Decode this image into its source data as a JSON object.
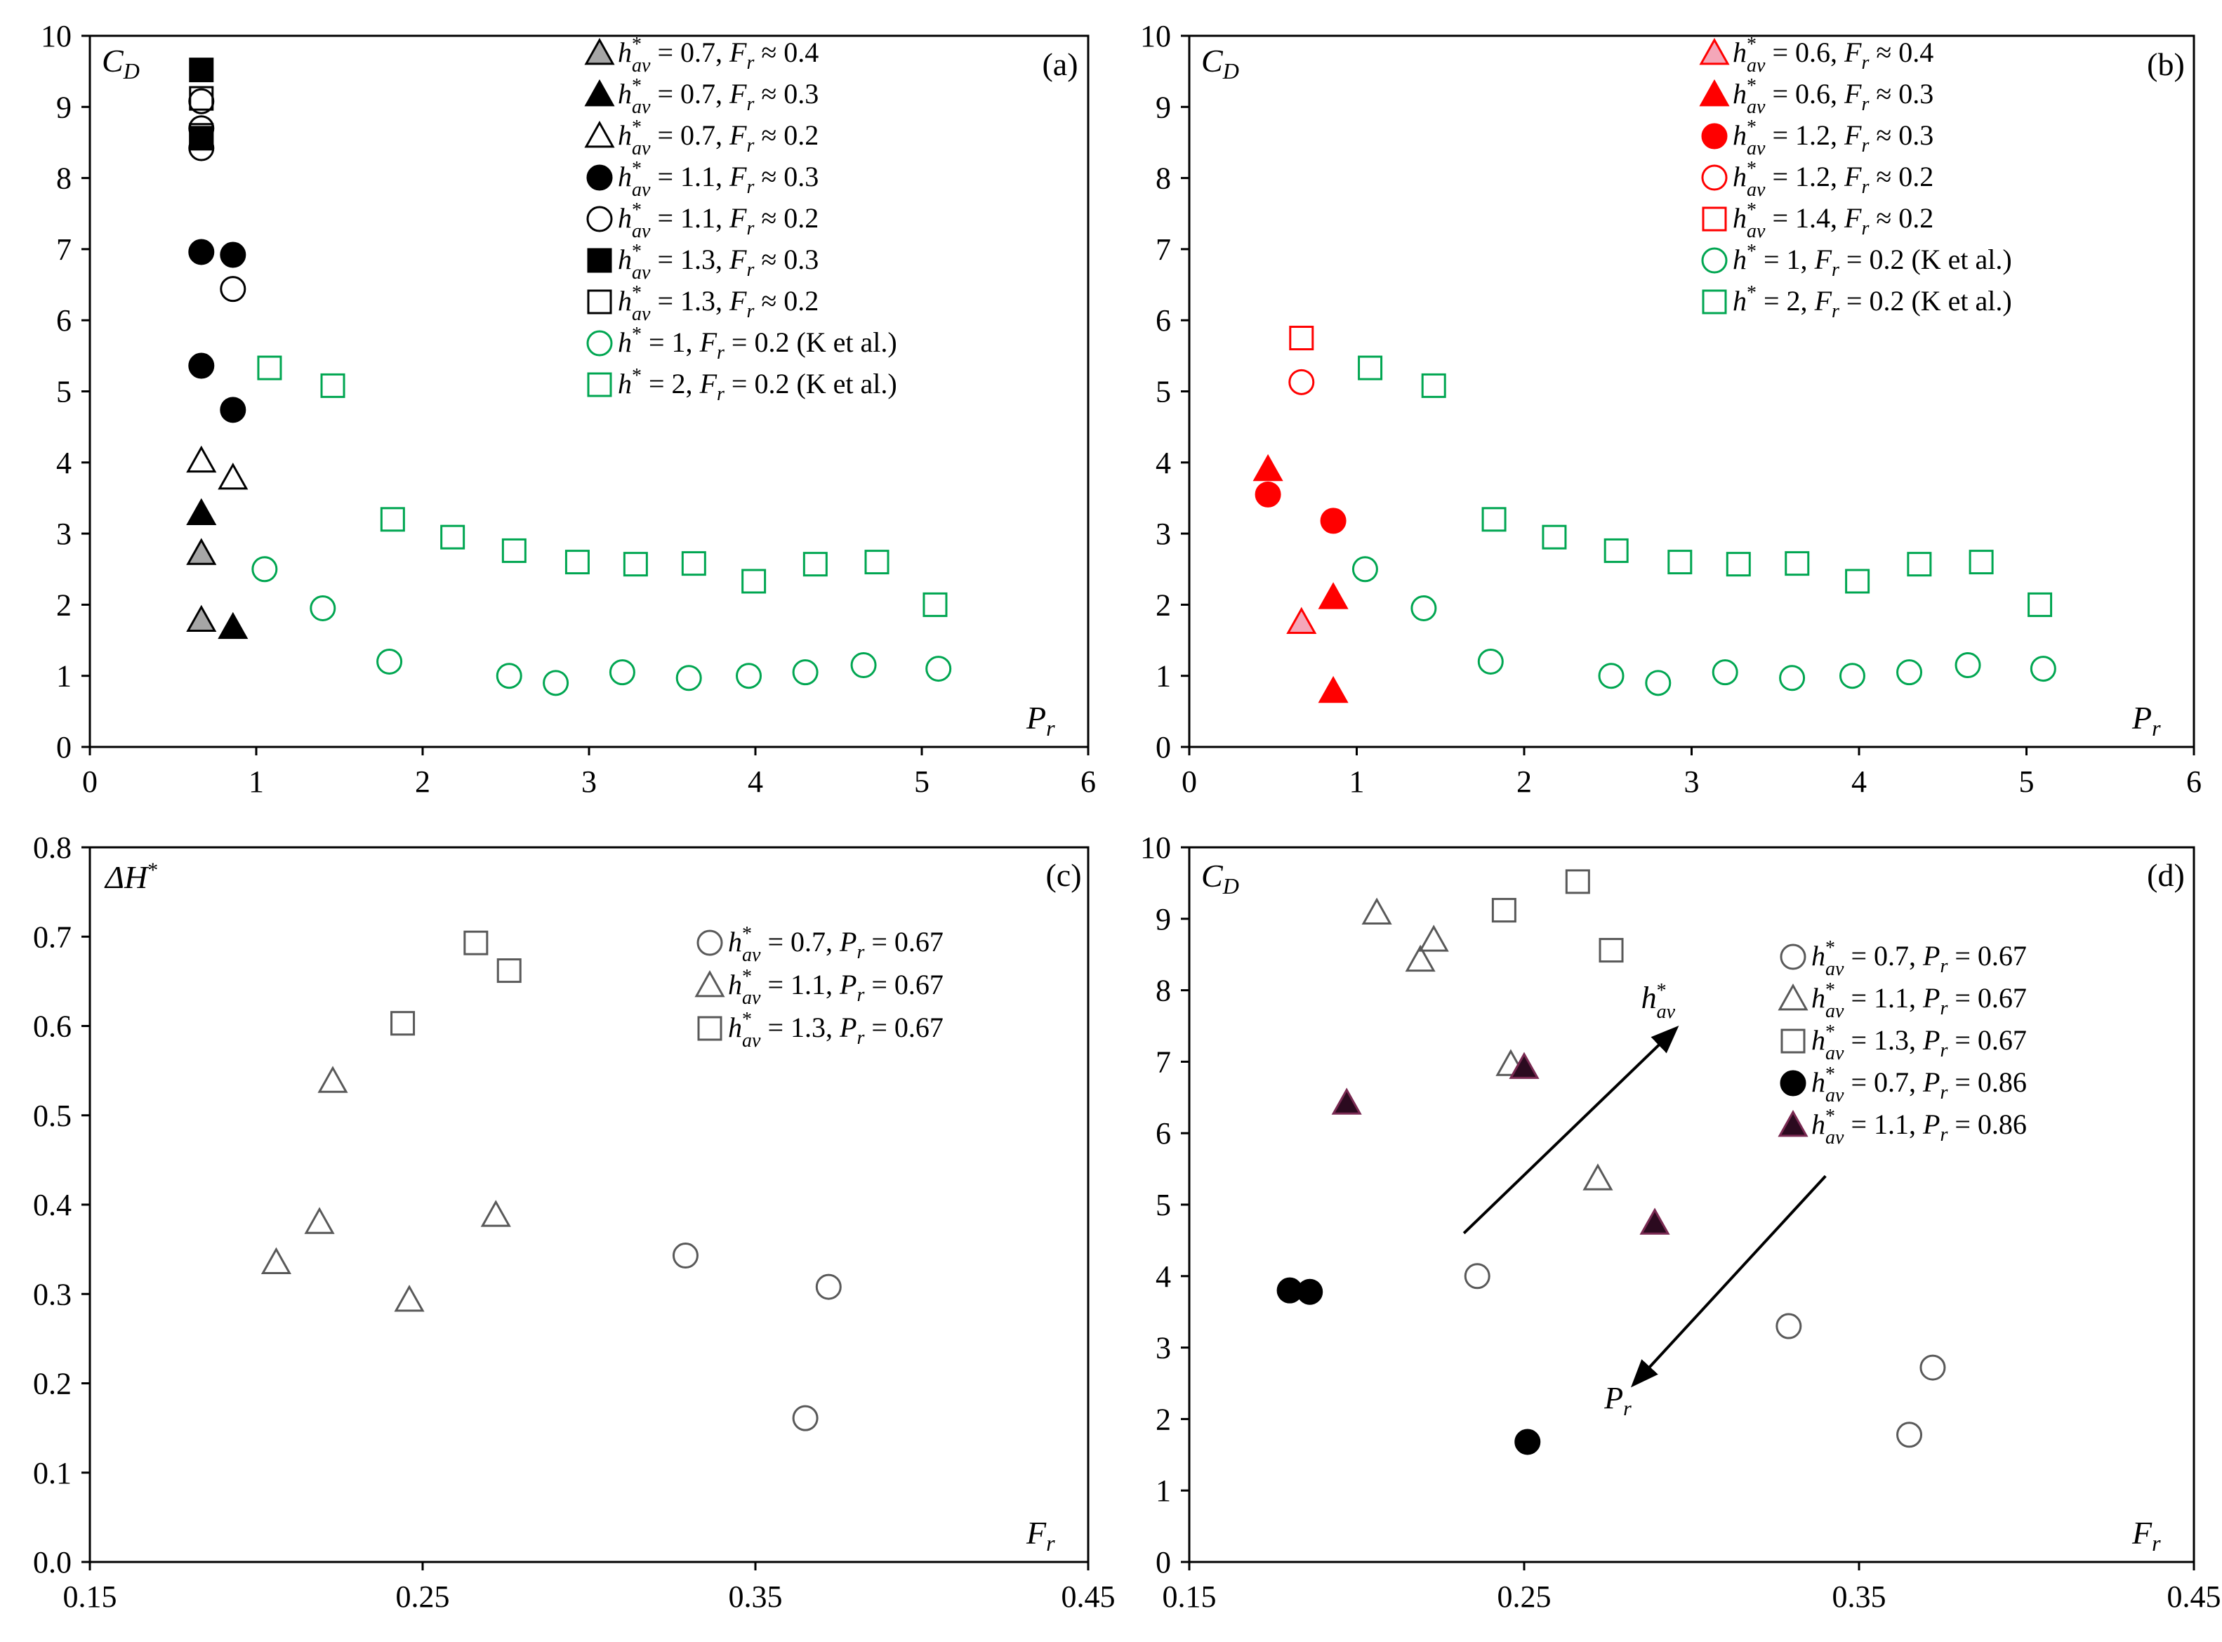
{
  "chart_data": [
    {
      "type": "scatter",
      "panel": "(a)",
      "ylabel": "C_D",
      "xlabel": "P_r",
      "xlim": [
        0,
        6
      ],
      "ylim": [
        0,
        10
      ],
      "xticks": [
        "0",
        "1",
        "2",
        "3",
        "4",
        "5",
        "6"
      ],
      "yticks": [
        "0",
        "1",
        "2",
        "3",
        "4",
        "5",
        "6",
        "7",
        "8",
        "9",
        "10"
      ],
      "legend_position": "top-right",
      "series": [
        {
          "name": "h*av = 0.7, Fr ≈ 0.4",
          "label": [
            "h",
            "av",
            " = 0.7, ",
            "F",
            "r",
            " ≈ 0.4"
          ],
          "marker": "triangle",
          "fill": "#a6a6a6",
          "stroke": "#000000",
          "x": [
            0.67,
            0.67
          ],
          "y": [
            2.72,
            1.78
          ]
        },
        {
          "name": "h*av = 0.7, Fr ≈ 0.3",
          "label": [
            "h",
            "av",
            " = 0.7, ",
            "F",
            "r",
            " ≈ 0.3"
          ],
          "marker": "triangle",
          "fill": "#000000",
          "stroke": "#000000",
          "x": [
            0.67,
            0.86
          ],
          "y": [
            3.28,
            1.68
          ]
        },
        {
          "name": "h*av = 0.7, Fr ≈ 0.2",
          "label": [
            "h",
            "av",
            " = 0.7, ",
            "F",
            "r",
            " ≈ 0.2"
          ],
          "marker": "triangle",
          "fill": "none",
          "stroke": "#000000",
          "x": [
            0.67,
            0.86
          ],
          "y": [
            4.02,
            3.78
          ]
        },
        {
          "name": "h*av = 1.1, Fr ≈ 0.3",
          "label": [
            "h",
            "av",
            " = 1.1, ",
            "F",
            "r",
            " ≈ 0.3"
          ],
          "marker": "circle",
          "fill": "#000000",
          "stroke": "#000000",
          "x": [
            0.67,
            0.86,
            0.67,
            0.86
          ],
          "y": [
            6.96,
            6.92,
            5.36,
            4.74
          ]
        },
        {
          "name": "h*av = 1.1, Fr ≈ 0.2",
          "label": [
            "h",
            "av",
            " = 1.1, ",
            "F",
            "r",
            " ≈ 0.2"
          ],
          "marker": "circle",
          "fill": "none",
          "stroke": "#000000",
          "x": [
            0.67,
            0.67,
            0.67,
            0.86
          ],
          "y": [
            9.08,
            8.7,
            8.42,
            6.44
          ]
        },
        {
          "name": "h*av = 1.3, Fr ≈ 0.3",
          "label": [
            "h",
            "av",
            " = 1.3, ",
            "F",
            "r",
            " ≈ 0.3"
          ],
          "marker": "square",
          "fill": "#000000",
          "stroke": "#000000",
          "x": [
            0.67,
            0.67
          ],
          "y": [
            9.52,
            8.56
          ]
        },
        {
          "name": "h*av = 1.3, Fr ≈ 0.2",
          "label": [
            "h",
            "av",
            " = 1.3, ",
            "F",
            "r",
            " ≈ 0.2"
          ],
          "marker": "square",
          "fill": "none",
          "stroke": "#000000",
          "x": [
            0.67,
            0.67
          ],
          "y": [
            9.12,
            8.6
          ]
        },
        {
          "name": "h* = 1, Fr = 0.2 (K et al.)",
          "label": [
            "h",
            "",
            " = 1, ",
            "F",
            "r",
            " = 0.2 (K et al.)"
          ],
          "marker": "circle",
          "fill": "none",
          "stroke": "#00a651",
          "x": [
            1.05,
            1.4,
            1.8,
            2.52,
            2.8,
            3.2,
            3.6,
            3.96,
            4.3,
            4.65,
            5.1
          ],
          "y": [
            2.5,
            1.95,
            1.2,
            1.0,
            0.9,
            1.05,
            0.97,
            1.0,
            1.05,
            1.15,
            1.1
          ]
        },
        {
          "name": "h* = 2, Fr = 0.2 (K et al.)",
          "label": [
            "h",
            "",
            " = 2, ",
            "F",
            "r",
            " = 0.2 (K et al.)"
          ],
          "marker": "square",
          "fill": "none",
          "stroke": "#00a651",
          "x": [
            1.08,
            1.46,
            1.82,
            2.18,
            2.55,
            2.93,
            3.28,
            3.63,
            3.99,
            4.36,
            4.73,
            5.08
          ],
          "y": [
            5.33,
            5.08,
            3.2,
            2.95,
            2.76,
            2.6,
            2.57,
            2.58,
            2.33,
            2.57,
            2.6,
            2.0
          ]
        }
      ]
    },
    {
      "type": "scatter",
      "panel": "(b)",
      "ylabel": "C_D",
      "xlabel": "P_r",
      "xlim": [
        0,
        6
      ],
      "ylim": [
        0,
        10
      ],
      "xticks": [
        "0",
        "1",
        "2",
        "3",
        "4",
        "5",
        "6"
      ],
      "yticks": [
        "0",
        "1",
        "2",
        "3",
        "4",
        "5",
        "6",
        "7",
        "8",
        "9",
        "10"
      ],
      "legend_position": "top-right",
      "series": [
        {
          "name": "h*av = 0.6, Fr ≈ 0.4",
          "label": [
            "h",
            "av",
            " = 0.6, ",
            "F",
            "r",
            " ≈ 0.4"
          ],
          "marker": "triangle",
          "fill": "#f4a7b9",
          "stroke": "#ff0000",
          "x": [
            0.67
          ],
          "y": [
            1.75
          ]
        },
        {
          "name": "h*av = 0.6, Fr ≈ 0.3",
          "label": [
            "h",
            "av",
            " = 0.6, ",
            "F",
            "r",
            " ≈ 0.3"
          ],
          "marker": "triangle",
          "fill": "#ff0000",
          "stroke": "#ff0000",
          "x": [
            0.47,
            0.86,
            0.86
          ],
          "y": [
            3.9,
            2.1,
            0.78
          ]
        },
        {
          "name": "h*av = 1.2, Fr ≈ 0.3",
          "label": [
            "h",
            "av",
            " = 1.2, ",
            "F",
            "r",
            " ≈ 0.3"
          ],
          "marker": "circle",
          "fill": "#ff0000",
          "stroke": "#ff0000",
          "x": [
            0.47,
            0.86
          ],
          "y": [
            3.55,
            3.18
          ]
        },
        {
          "name": "h*av = 1.2, Fr ≈ 0.2",
          "label": [
            "h",
            "av",
            " = 1.2, ",
            "F",
            "r",
            " ≈ 0.2"
          ],
          "marker": "circle",
          "fill": "none",
          "stroke": "#ff0000",
          "x": [
            0.67
          ],
          "y": [
            5.13
          ]
        },
        {
          "name": "h*av = 1.4, Fr ≈ 0.2",
          "label": [
            "h",
            "av",
            " = 1.4, ",
            "F",
            "r",
            " ≈ 0.2"
          ],
          "marker": "square",
          "fill": "none",
          "stroke": "#ff0000",
          "x": [
            0.67
          ],
          "y": [
            5.75
          ]
        },
        {
          "name": "h* = 1, Fr = 0.2 (K et al.)",
          "label": [
            "h",
            "",
            " = 1, ",
            "F",
            "r",
            " = 0.2 (K et al.)"
          ],
          "marker": "circle",
          "fill": "none",
          "stroke": "#00a651",
          "x": [
            1.05,
            1.4,
            1.8,
            2.52,
            2.8,
            3.2,
            3.6,
            3.96,
            4.3,
            4.65,
            5.1
          ],
          "y": [
            2.5,
            1.95,
            1.2,
            1.0,
            0.9,
            1.05,
            0.97,
            1.0,
            1.05,
            1.15,
            1.1
          ]
        },
        {
          "name": "h* = 2, Fr = 0.2 (K et al.)",
          "label": [
            "h",
            "",
            " = 2, ",
            "F",
            "r",
            " = 0.2 (K et al.)"
          ],
          "marker": "square",
          "fill": "none",
          "stroke": "#00a651",
          "x": [
            1.08,
            1.46,
            1.82,
            2.18,
            2.55,
            2.93,
            3.28,
            3.63,
            3.99,
            4.36,
            4.73,
            5.08
          ],
          "y": [
            5.33,
            5.08,
            3.2,
            2.95,
            2.76,
            2.6,
            2.57,
            2.58,
            2.33,
            2.57,
            2.6,
            2.0
          ]
        }
      ]
    },
    {
      "type": "scatter",
      "panel": "(c)",
      "ylabel": "ΔH*",
      "xlabel": "F_r",
      "xlim": [
        0.15,
        0.45
      ],
      "ylim": [
        0,
        0.8
      ],
      "xticks": [
        "0.15",
        "0.25",
        "0.35",
        "0.45"
      ],
      "yticks": [
        "0.0",
        "0.1",
        "0.2",
        "0.3",
        "0.4",
        "0.5",
        "0.6",
        "0.7",
        "0.8"
      ],
      "legend_position": "top-right",
      "series": [
        {
          "name": "h*av = 0.7, Pr = 0.67",
          "label": [
            "h",
            "av",
            " = 0.7, ",
            "P",
            "r",
            " = 0.67"
          ],
          "marker": "circle",
          "fill": "none",
          "stroke": "#595959",
          "x": [
            0.329,
            0.372,
            0.365
          ],
          "y": [
            0.343,
            0.308,
            0.161
          ]
        },
        {
          "name": "h*av = 1.1, Pr = 0.67",
          "label": [
            "h",
            "av",
            " = 1.1, ",
            "P",
            "r",
            " = 0.67"
          ],
          "marker": "triangle",
          "fill": "none",
          "stroke": "#595959",
          "x": [
            0.223,
            0.206,
            0.219,
            0.246,
            0.272
          ],
          "y": [
            0.538,
            0.335,
            0.38,
            0.293,
            0.388
          ]
        },
        {
          "name": "h*av = 1.3, Pr = 0.67",
          "label": [
            "h",
            "av",
            " = 1.3, ",
            "P",
            "r",
            " = 0.67"
          ],
          "marker": "square",
          "fill": "none",
          "stroke": "#595959",
          "x": [
            0.266,
            0.276,
            0.244
          ],
          "y": [
            0.693,
            0.662,
            0.603
          ]
        }
      ]
    },
    {
      "type": "scatter",
      "panel": "(d)",
      "ylabel": "C_D",
      "xlabel": "F_r",
      "xlim": [
        0.15,
        0.45
      ],
      "ylim": [
        0,
        10
      ],
      "xticks": [
        "0.15",
        "0.25",
        "0.35",
        "0.45"
      ],
      "yticks": [
        "0",
        "1",
        "2",
        "3",
        "4",
        "5",
        "6",
        "7",
        "8",
        "9",
        "10"
      ],
      "legend_position": "top-right",
      "annotations": [
        {
          "text": "h*av",
          "label": [
            "h",
            "av"
          ],
          "arrow_from": [
            0.232,
            4.6
          ],
          "arrow_to": [
            0.295,
            7.45
          ],
          "text_at": [
            0.29,
            7.75
          ]
        },
        {
          "text": "P_r",
          "label": [
            "P",
            "r"
          ],
          "arrow_from": [
            0.34,
            5.4
          ],
          "arrow_to": [
            0.283,
            2.5
          ],
          "text_at": [
            0.278,
            2.15
          ]
        }
      ],
      "series": [
        {
          "name": "h*av = 0.7, Pr = 0.67",
          "label": [
            "h",
            "av",
            " = 0.7, ",
            "P",
            "r",
            " = 0.67"
          ],
          "marker": "circle",
          "fill": "none",
          "stroke": "#595959",
          "x": [
            0.236,
            0.329,
            0.372,
            0.365
          ],
          "y": [
            4.0,
            3.3,
            2.72,
            1.78
          ]
        },
        {
          "name": "h*av = 1.1, Pr = 0.67",
          "label": [
            "h",
            "av",
            " = 1.1, ",
            "P",
            "r",
            " = 0.67"
          ],
          "marker": "triangle",
          "fill": "none",
          "stroke": "#595959",
          "x": [
            0.206,
            0.219,
            0.223,
            0.246,
            0.272
          ],
          "y": [
            9.08,
            8.42,
            8.7,
            6.96,
            5.36
          ]
        },
        {
          "name": "h*av = 1.3, Pr = 0.67",
          "label": [
            "h",
            "av",
            " = 1.3, ",
            "P",
            "r",
            " = 0.67"
          ],
          "marker": "square",
          "fill": "none",
          "stroke": "#595959",
          "x": [
            0.244,
            0.266,
            0.276
          ],
          "y": [
            9.12,
            9.52,
            8.56
          ]
        },
        {
          "name": "h*av = 0.7, Pr = 0.86",
          "label": [
            "h",
            "av",
            " = 0.7, ",
            "P",
            "r",
            " = 0.86"
          ],
          "marker": "circle",
          "fill": "#000000",
          "stroke": "#000000",
          "x": [
            0.18,
            0.186,
            0.251
          ],
          "y": [
            3.8,
            3.78,
            1.68
          ]
        },
        {
          "name": "h*av = 1.1, Pr = 0.86",
          "label": [
            "h",
            "av",
            " = 1.1, ",
            "P",
            "r",
            " = 0.86"
          ],
          "marker": "triangle",
          "fill": "#2b0a1f",
          "stroke": "#7a2a52",
          "x": [
            0.197,
            0.25,
            0.289
          ],
          "y": [
            6.42,
            6.92,
            4.74
          ]
        }
      ]
    }
  ]
}
